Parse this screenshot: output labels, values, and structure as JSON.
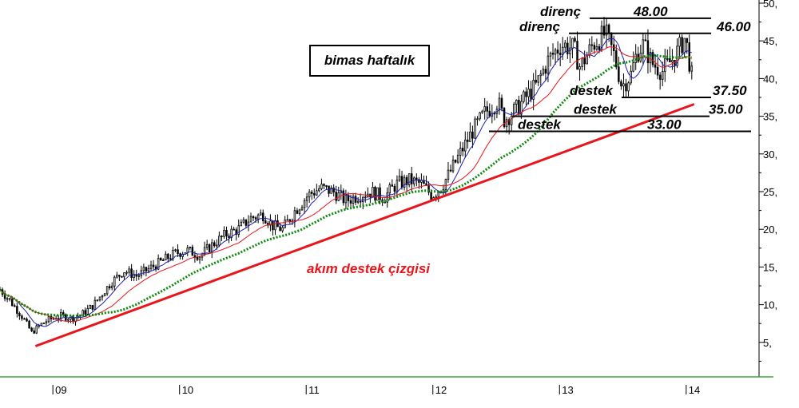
{
  "chart_data": {
    "type": "candlestick",
    "title": "bimas haftalık",
    "y_ticks": [
      "5,",
      "10,",
      "15,",
      "20,",
      "25,",
      "30,",
      "35,",
      "40,",
      "45,",
      "50,"
    ],
    "y_tick_values": [
      5,
      10,
      15,
      20,
      25,
      30,
      35,
      40,
      45,
      50
    ],
    "x_ticks": [
      "09",
      "10",
      "11",
      "12",
      "13",
      "14"
    ],
    "ylim": [
      0,
      50
    ],
    "xlim": [
      2008.57,
      2014.55
    ],
    "grid": false,
    "annotations": {
      "resistance": [
        {
          "label": "direnç",
          "value_label": "48.00",
          "value": 48.0
        },
        {
          "label": "direnç",
          "value_label": "46.00",
          "value": 46.0
        }
      ],
      "support": [
        {
          "label": "destek",
          "value_label": "37.50",
          "value": 37.5
        },
        {
          "label": "destek",
          "value_label": "35.00",
          "value": 35.0
        },
        {
          "label": "destek",
          "value_label": "33.00",
          "value": 33.0
        }
      ],
      "trendline": {
        "label": "akım destek çizgisi",
        "from": [
          2008.85,
          4.5
        ],
        "to": [
          2014.05,
          36.6
        ]
      }
    },
    "colors": {
      "candles": "#000000",
      "ma_fast": "#1f1fb0",
      "ma_mid": "#e8151b",
      "ma_slow": "#0b8a0b",
      "trendline": "#e8151b",
      "x_axis_line": "#3aa53a"
    },
    "price_path": [
      [
        2008.57,
        12.0
      ],
      [
        2008.65,
        10.5
      ],
      [
        2008.75,
        8.3
      ],
      [
        2008.82,
        6.3
      ],
      [
        2008.88,
        7.2
      ],
      [
        2008.95,
        8.0
      ],
      [
        2009.05,
        8.5
      ],
      [
        2009.15,
        8.2
      ],
      [
        2009.22,
        8.8
      ],
      [
        2009.3,
        9.8
      ],
      [
        2009.38,
        11.5
      ],
      [
        2009.45,
        13.0
      ],
      [
        2009.55,
        14.5
      ],
      [
        2009.65,
        13.8
      ],
      [
        2009.75,
        14.8
      ],
      [
        2009.85,
        15.8
      ],
      [
        2009.95,
        16.8
      ],
      [
        2010.05,
        17.2
      ],
      [
        2010.15,
        16.5
      ],
      [
        2010.25,
        18.0
      ],
      [
        2010.35,
        19.3
      ],
      [
        2010.45,
        20.0
      ],
      [
        2010.55,
        21.5
      ],
      [
        2010.65,
        22.0
      ],
      [
        2010.72,
        20.5
      ],
      [
        2010.8,
        20.0
      ],
      [
        2010.9,
        22.5
      ],
      [
        2011.0,
        24.5
      ],
      [
        2011.1,
        25.5
      ],
      [
        2011.2,
        25.0
      ],
      [
        2011.3,
        23.8
      ],
      [
        2011.4,
        24.5
      ],
      [
        2011.5,
        25.0
      ],
      [
        2011.6,
        24.2
      ],
      [
        2011.7,
        26.0
      ],
      [
        2011.8,
        26.5
      ],
      [
        2011.9,
        26.0
      ],
      [
        2011.98,
        24.5
      ],
      [
        2012.05,
        25.5
      ],
      [
        2012.12,
        27.5
      ],
      [
        2012.2,
        30.0
      ],
      [
        2012.3,
        33.0
      ],
      [
        2012.4,
        35.5
      ],
      [
        2012.5,
        37.0
      ],
      [
        2012.55,
        34.5
      ],
      [
        2012.65,
        36.0
      ],
      [
        2012.72,
        37.5
      ],
      [
        2012.8,
        39.0
      ],
      [
        2012.9,
        42.5
      ],
      [
        2013.0,
        44.5
      ],
      [
        2013.1,
        44.0
      ],
      [
        2013.15,
        41.5
      ],
      [
        2013.25,
        44.5
      ],
      [
        2013.35,
        46.0
      ],
      [
        2013.42,
        43.0
      ],
      [
        2013.48,
        39.0
      ],
      [
        2013.55,
        40.5
      ],
      [
        2013.6,
        43.5
      ],
      [
        2013.65,
        44.5
      ],
      [
        2013.72,
        42.0
      ],
      [
        2013.8,
        41.0
      ],
      [
        2013.9,
        43.0
      ],
      [
        2013.98,
        45.5
      ],
      [
        2014.02,
        41.5
      ],
      [
        2014.05,
        38.5
      ]
    ]
  }
}
